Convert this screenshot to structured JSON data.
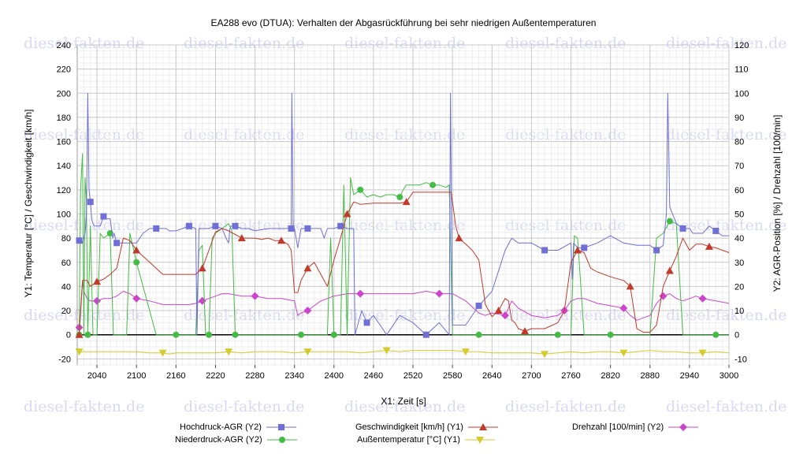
{
  "watermark": {
    "text": "diesel-fakten.de"
  },
  "chart_data": {
    "type": "line",
    "title": "EA288 evo (DTUA): Verhalten der Abgasrückführung bei sehr niedrigen Außentemperaturen",
    "xlabel": "X1: Zeit [s]",
    "ylabel_left": "Y1: Temperatur [°C] / Geschwindigkeit [km/h]",
    "ylabel_right": "Y2: AGR-Position [%] / Drehzahl [100/min]",
    "xlim": [
      2010,
      3000
    ],
    "ylim_left": [
      -25,
      240
    ],
    "ylim_right": [
      -12.5,
      120
    ],
    "xticks": [
      2040,
      2100,
      2160,
      2220,
      2280,
      2340,
      2400,
      2460,
      2520,
      2580,
      2640,
      2700,
      2760,
      2820,
      2880,
      2940,
      3000
    ],
    "yticks_left": [
      -20,
      0,
      20,
      40,
      60,
      80,
      100,
      120,
      140,
      160,
      180,
      200,
      220,
      240
    ],
    "yticks_right": [
      -10,
      0,
      10,
      20,
      30,
      40,
      50,
      60,
      70,
      80,
      90,
      100,
      110,
      120
    ],
    "grid": true,
    "legend_position": "bottom",
    "series": [
      {
        "name": "Hochdruck-AGR (Y2)",
        "axis": "Y2",
        "color": "#6f6fd6",
        "marker": "square",
        "x": [
          2013,
          2018,
          2022,
          2024,
          2026,
          2028,
          2030,
          2032,
          2034,
          2036,
          2040,
          2045,
          2050,
          2055,
          2060,
          2062,
          2064,
          2066,
          2070,
          2080,
          2090,
          2100,
          2110,
          2120,
          2130,
          2140,
          2145,
          2150,
          2160,
          2170,
          2180,
          2190,
          2192,
          2195,
          2200,
          2210,
          2220,
          2230,
          2236,
          2240,
          2242,
          2244,
          2250,
          2260,
          2270,
          2280,
          2300,
          2320,
          2335,
          2336,
          2338,
          2340,
          2345,
          2350,
          2360,
          2370,
          2380,
          2385,
          2390,
          2400,
          2410,
          2420,
          2430,
          2432,
          2440,
          2442,
          2450,
          2460,
          2470,
          2480,
          2500,
          2520,
          2540,
          2560,
          2575,
          2577,
          2580,
          2600,
          2620,
          2640,
          2660,
          2670,
          2680,
          2700,
          2720,
          2740,
          2760,
          2762,
          2764,
          2770,
          2780,
          2800,
          2820,
          2840,
          2860,
          2880,
          2890,
          2900,
          2905,
          2907,
          2910,
          2920,
          2930,
          2940,
          2945,
          2950,
          2960,
          2970,
          2980,
          2990,
          3000
        ],
        "y": [
          39,
          38,
          42,
          50,
          100,
          60,
          55,
          48,
          46,
          45,
          45,
          45,
          49,
          48,
          48,
          44,
          40,
          42,
          38,
          38,
          38,
          38,
          42,
          44,
          44,
          44,
          44,
          43,
          43,
          44,
          45,
          44,
          0,
          44,
          44,
          44,
          45,
          44,
          40,
          38,
          44,
          45,
          45,
          44,
          44,
          43,
          44,
          44,
          44,
          100,
          44,
          44,
          36,
          44,
          44,
          44,
          44,
          40,
          44,
          44,
          45,
          44,
          44,
          0,
          8,
          10,
          5,
          8,
          4,
          0,
          8,
          5,
          0,
          5,
          0,
          100,
          4,
          4,
          12,
          18,
          35,
          40,
          38,
          38,
          35,
          35,
          38,
          23,
          38,
          36,
          36,
          38,
          41,
          38,
          37,
          37,
          35,
          37,
          50,
          100,
          53,
          46,
          44,
          44,
          42,
          42,
          42,
          45,
          43,
          41,
          41
        ]
      },
      {
        "name": "Niederdruck-AGR (Y2)",
        "axis": "Y2",
        "color": "#44bb44",
        "marker": "circle",
        "x": [
          2013,
          2015,
          2018,
          2020,
          2022,
          2024,
          2026,
          2030,
          2034,
          2040,
          2045,
          2050,
          2060,
          2065,
          2070,
          2080,
          2085,
          2090,
          2100,
          2110,
          2120,
          2130,
          2140,
          2150,
          2160,
          2180,
          2190,
          2195,
          2200,
          2205,
          2210,
          2215,
          2220,
          2230,
          2240,
          2245,
          2250,
          2260,
          2280,
          2300,
          2320,
          2340,
          2350,
          2360,
          2370,
          2380,
          2390,
          2395,
          2400,
          2410,
          2415,
          2420,
          2425,
          2430,
          2440,
          2450,
          2460,
          2470,
          2480,
          2490,
          2500,
          2505,
          2510,
          2520,
          2530,
          2540,
          2550,
          2560,
          2570,
          2575,
          2580,
          2600,
          2620,
          2640,
          2660,
          2680,
          2700,
          2720,
          2740,
          2760,
          2765,
          2770,
          2780,
          2800,
          2820,
          2840,
          2860,
          2880,
          2890,
          2900,
          2910,
          2920,
          2930,
          2940,
          2950,
          2960,
          2980,
          3000
        ],
        "y": [
          0,
          60,
          75,
          0,
          65,
          55,
          0,
          45,
          0,
          0,
          42,
          40,
          42,
          0,
          0,
          0,
          0,
          42,
          30,
          20,
          10,
          0,
          0,
          0,
          0,
          0,
          0,
          35,
          37,
          0,
          0,
          40,
          42,
          44,
          46,
          43,
          0,
          0,
          0,
          0,
          0,
          0,
          0,
          0,
          0,
          0,
          0,
          40,
          0,
          0,
          62,
          0,
          65,
          58,
          60,
          57,
          58,
          57,
          58,
          58,
          57,
          60,
          62,
          62,
          62,
          63,
          62,
          62,
          61,
          62,
          0,
          0,
          0,
          0,
          0,
          0,
          0,
          0,
          0,
          0,
          41,
          40,
          0,
          0,
          0,
          0,
          0,
          0,
          40,
          42,
          47,
          46,
          0,
          0,
          0,
          0,
          0,
          0
        ]
      },
      {
        "name": "Geschwindigkeit [km/h] (Y1)",
        "axis": "Y1",
        "color": "#c0392b",
        "marker": "triangle-up",
        "x": [
          2013,
          2015,
          2018,
          2020,
          2025,
          2030,
          2040,
          2050,
          2060,
          2070,
          2080,
          2090,
          2100,
          2120,
          2140,
          2160,
          2180,
          2190,
          2200,
          2210,
          2220,
          2230,
          2240,
          2250,
          2260,
          2270,
          2280,
          2290,
          2300,
          2310,
          2320,
          2330,
          2335,
          2340,
          2345,
          2350,
          2360,
          2370,
          2380,
          2390,
          2400,
          2410,
          2420,
          2430,
          2440,
          2460,
          2480,
          2500,
          2510,
          2520,
          2540,
          2560,
          2578,
          2585,
          2590,
          2600,
          2610,
          2620,
          2630,
          2640,
          2650,
          2660,
          2665,
          2670,
          2675,
          2680,
          2690,
          2700,
          2720,
          2740,
          2750,
          2760,
          2770,
          2780,
          2790,
          2800,
          2820,
          2840,
          2850,
          2860,
          2870,
          2880,
          2890,
          2900,
          2910,
          2920,
          2930,
          2940,
          2950,
          2960,
          2970,
          2980,
          2990,
          3000
        ],
        "y": [
          0,
          20,
          45,
          45,
          45,
          40,
          44,
          46,
          50,
          55,
          80,
          78,
          70,
          60,
          50,
          50,
          50,
          50,
          55,
          70,
          85,
          88,
          86,
          83,
          80,
          80,
          80,
          79,
          80,
          78,
          78,
          75,
          70,
          35,
          35,
          45,
          55,
          60,
          50,
          40,
          62,
          80,
          100,
          110,
          108,
          109,
          109,
          109,
          110,
          118,
          118,
          118,
          118,
          90,
          80,
          75,
          70,
          62,
          25,
          15,
          20,
          30,
          28,
          12,
          10,
          5,
          3,
          5,
          5,
          10,
          20,
          60,
          70,
          68,
          55,
          52,
          48,
          45,
          40,
          5,
          2,
          2,
          8,
          40,
          53,
          65,
          80,
          70,
          75,
          75,
          73,
          72,
          70,
          68
        ]
      },
      {
        "name": "Außentemperatur [°C] (Y1)",
        "axis": "Y1",
        "color": "#d4cc2e",
        "marker": "triangle-down",
        "x": [
          2013,
          2040,
          2060,
          2080,
          2100,
          2120,
          2140,
          2150,
          2160,
          2190,
          2200,
          2220,
          2240,
          2260,
          2280,
          2300,
          2320,
          2340,
          2360,
          2380,
          2400,
          2420,
          2440,
          2460,
          2480,
          2500,
          2520,
          2540,
          2560,
          2580,
          2600,
          2620,
          2640,
          2660,
          2680,
          2700,
          2720,
          2740,
          2760,
          2780,
          2800,
          2820,
          2840,
          2860,
          2880,
          2900,
          2920,
          2940,
          2960,
          2980,
          3000
        ],
        "y": [
          -14,
          -14,
          -14,
          -14,
          -14,
          -15,
          -15,
          -16,
          -15,
          -15,
          -15,
          -15,
          -14,
          -15,
          -14,
          -14,
          -14,
          -15,
          -14,
          -14,
          -14,
          -14,
          -15,
          -14,
          -13,
          -14,
          -13,
          -13,
          -13,
          -13,
          -14,
          -14,
          -15,
          -15,
          -15,
          -15,
          -16,
          -15,
          -14,
          -15,
          -14,
          -14,
          -15,
          -14,
          -13,
          -14,
          -14,
          -15,
          -15,
          -14,
          -15
        ]
      },
      {
        "name": "Drehzahl [100/min] (Y2)",
        "axis": "Y2",
        "color": "#cc44cc",
        "marker": "diamond",
        "x": [
          2013,
          2015,
          2018,
          2020,
          2025,
          2030,
          2040,
          2050,
          2060,
          2070,
          2080,
          2090,
          2100,
          2120,
          2140,
          2160,
          2180,
          2190,
          2200,
          2210,
          2220,
          2230,
          2240,
          2260,
          2280,
          2300,
          2320,
          2340,
          2345,
          2350,
          2360,
          2370,
          2380,
          2390,
          2400,
          2420,
          2440,
          2460,
          2480,
          2500,
          2520,
          2540,
          2560,
          2580,
          2600,
          2620,
          2630,
          2640,
          2660,
          2670,
          2680,
          2700,
          2720,
          2740,
          2750,
          2760,
          2770,
          2780,
          2800,
          2820,
          2840,
          2850,
          2860,
          2870,
          2880,
          2890,
          2900,
          2910,
          2920,
          2930,
          2940,
          2950,
          2960,
          2980,
          3000
        ],
        "y": [
          3,
          8,
          22,
          18,
          15,
          14,
          14,
          15,
          15,
          16,
          18,
          17,
          15,
          14,
          12.5,
          12.5,
          12.5,
          13,
          14,
          15,
          16,
          17,
          17,
          16,
          16,
          15,
          15,
          14,
          8,
          9,
          10,
          12,
          14,
          15,
          16,
          17,
          17,
          17,
          17,
          17,
          17,
          18,
          17,
          17,
          14,
          9,
          8,
          9,
          8,
          14,
          11,
          8,
          7,
          8,
          10,
          14,
          15,
          15,
          13,
          12,
          11,
          8,
          6,
          7,
          8,
          13,
          16,
          17,
          15,
          14,
          15,
          16,
          15,
          14,
          13
        ]
      }
    ]
  }
}
